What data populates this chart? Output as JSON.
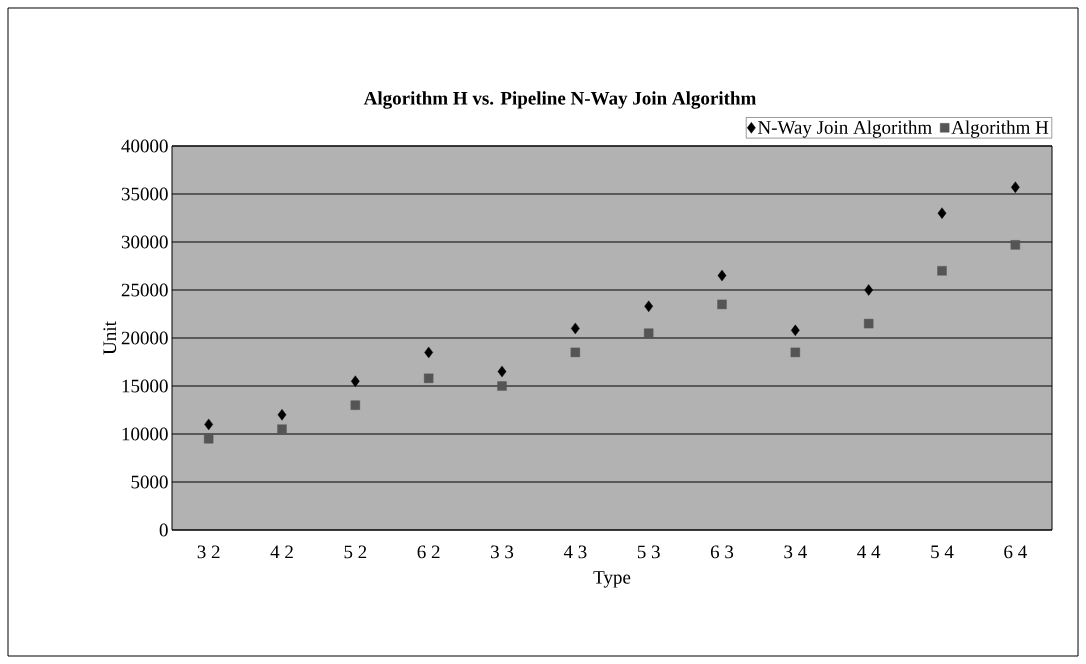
{
  "chart_data": {
    "type": "scatter",
    "title": "Algorithm H vs. Pipeline N-Way Join Algorithm",
    "xlabel": "Type",
    "ylabel": "Unit",
    "categories": [
      "3 2",
      "4 2",
      "5 2",
      "6 2",
      "3 3",
      "4 3",
      "5 3",
      "6 3",
      "3 4",
      "4 4",
      "5 4",
      "6 4"
    ],
    "series": [
      {
        "name": "N-Way Join Algorithm",
        "color": "#000000",
        "marker": "diamond",
        "values": [
          11000,
          12000,
          15500,
          18500,
          16500,
          21000,
          23300,
          26500,
          20800,
          25000,
          33000,
          35700
        ]
      },
      {
        "name": "Algorithm H",
        "color": "#555555",
        "marker": "square",
        "values": [
          9500,
          10500,
          13000,
          15800,
          15000,
          18500,
          20500,
          23500,
          18500,
          21500,
          27000,
          29700
        ]
      }
    ],
    "ylim": [
      0,
      40000
    ],
    "yticks": [
      0,
      5000,
      10000,
      15000,
      20000,
      25000,
      30000,
      35000,
      40000
    ],
    "grid": "y",
    "legend": "top right"
  }
}
